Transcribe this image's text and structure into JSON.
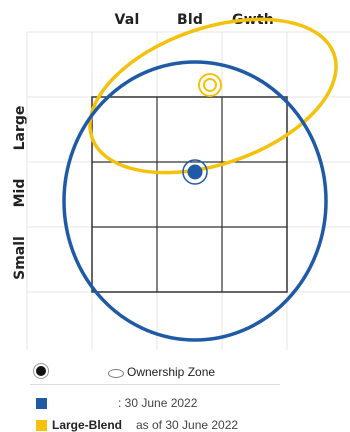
{
  "columns": [
    "Val",
    "Bld",
    "Gwth"
  ],
  "rows": [
    "Large",
    "Mid",
    "Small"
  ],
  "colors": {
    "fund": "#1f5aa6",
    "category": "#f4c20d",
    "grid": "#333333",
    "faint_grid": "#e4e4e4"
  },
  "legend": {
    "ownership_zone_label": "Ownership Zone",
    "fund_date": ": 30 June 2022",
    "category_name": "Large-Blend",
    "category_date": "as of 30 June 2022"
  }
}
